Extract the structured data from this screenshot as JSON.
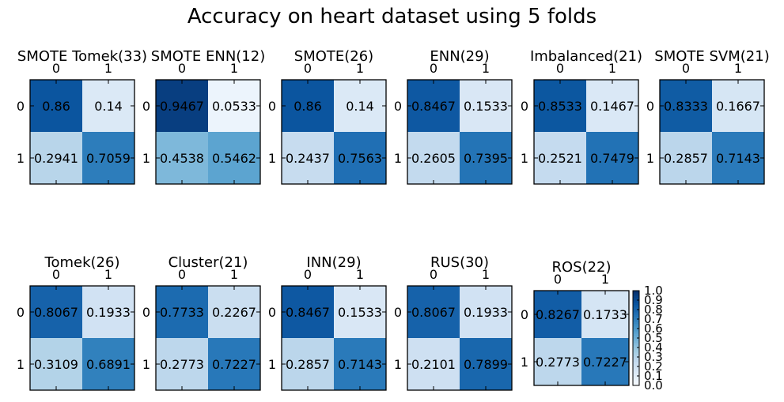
{
  "suptitle": "Accuracy on heart dataset using 5 folds",
  "chart_data": [
    {
      "type": "heatmap",
      "title": "SMOTE Tomek(33)",
      "x": [
        "0",
        "1"
      ],
      "y": [
        "0",
        "1"
      ],
      "values": [
        [
          "0.86",
          "0.14"
        ],
        [
          "0.2941",
          "0.7059"
        ]
      ]
    },
    {
      "type": "heatmap",
      "title": "SMOTE ENN(12)",
      "x": [
        "0",
        "1"
      ],
      "y": [
        "0",
        "1"
      ],
      "values": [
        [
          "0.9467",
          "0.0533"
        ],
        [
          "0.4538",
          "0.5462"
        ]
      ]
    },
    {
      "type": "heatmap",
      "title": "SMOTE(26)",
      "x": [
        "0",
        "1"
      ],
      "y": [
        "0",
        "1"
      ],
      "values": [
        [
          "0.86",
          "0.14"
        ],
        [
          "0.2437",
          "0.7563"
        ]
      ]
    },
    {
      "type": "heatmap",
      "title": "ENN(29)",
      "x": [
        "0",
        "1"
      ],
      "y": [
        "0",
        "1"
      ],
      "values": [
        [
          "0.8467",
          "0.1533"
        ],
        [
          "0.2605",
          "0.7395"
        ]
      ]
    },
    {
      "type": "heatmap",
      "title": "Imbalanced(21)",
      "x": [
        "0",
        "1"
      ],
      "y": [
        "0",
        "1"
      ],
      "values": [
        [
          "0.8533",
          "0.1467"
        ],
        [
          "0.2521",
          "0.7479"
        ]
      ]
    },
    {
      "type": "heatmap",
      "title": "SMOTE SVM(21)",
      "x": [
        "0",
        "1"
      ],
      "y": [
        "0",
        "1"
      ],
      "values": [
        [
          "0.8333",
          "0.1667"
        ],
        [
          "0.2857",
          "0.7143"
        ]
      ]
    },
    {
      "type": "heatmap",
      "title": "Tomek(26)",
      "x": [
        "0",
        "1"
      ],
      "y": [
        "0",
        "1"
      ],
      "values": [
        [
          "0.8067",
          "0.1933"
        ],
        [
          "0.3109",
          "0.6891"
        ]
      ]
    },
    {
      "type": "heatmap",
      "title": "Cluster(21)",
      "x": [
        "0",
        "1"
      ],
      "y": [
        "0",
        "1"
      ],
      "values": [
        [
          "0.7733",
          "0.2267"
        ],
        [
          "0.2773",
          "0.7227"
        ]
      ]
    },
    {
      "type": "heatmap",
      "title": "INN(29)",
      "x": [
        "0",
        "1"
      ],
      "y": [
        "0",
        "1"
      ],
      "values": [
        [
          "0.8467",
          "0.1533"
        ],
        [
          "0.2857",
          "0.7143"
        ]
      ]
    },
    {
      "type": "heatmap",
      "title": "RUS(30)",
      "x": [
        "0",
        "1"
      ],
      "y": [
        "0",
        "1"
      ],
      "values": [
        [
          "0.8067",
          "0.1933"
        ],
        [
          "0.2101",
          "0.7899"
        ]
      ]
    },
    {
      "type": "heatmap",
      "title": "ROS(22)",
      "x": [
        "0",
        "1"
      ],
      "y": [
        "0",
        "1"
      ],
      "values": [
        [
          "0.8267",
          "0.1733"
        ],
        [
          "0.2773",
          "0.7227"
        ]
      ]
    }
  ],
  "colorbar": {
    "range": [
      0,
      1
    ],
    "ticks": [
      "0.0",
      "0.1",
      "0.2",
      "0.3",
      "0.4",
      "0.5",
      "0.6",
      "0.7",
      "0.8",
      "0.9",
      "1.0"
    ],
    "colormap": "Blues",
    "color_low": "#f7fbff",
    "color_high": "#08306b"
  }
}
